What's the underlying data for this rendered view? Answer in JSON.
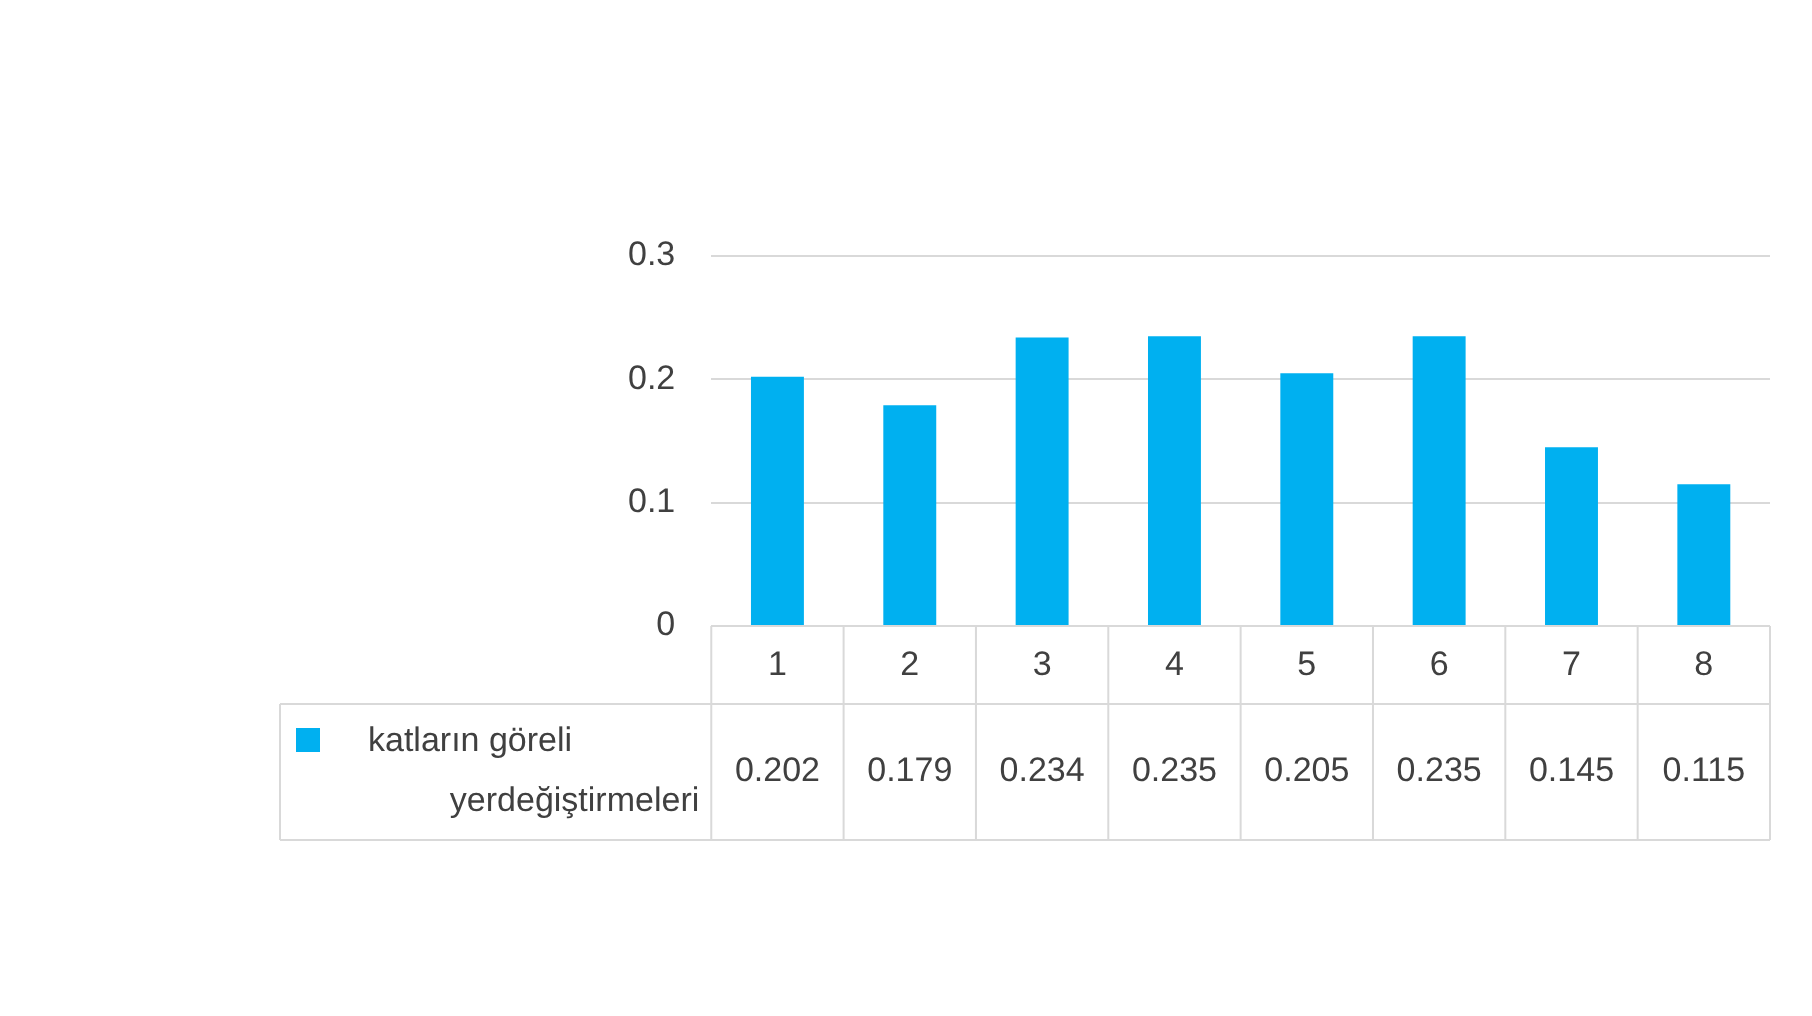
{
  "chart_data": {
    "type": "bar",
    "categories": [
      "1",
      "2",
      "3",
      "4",
      "5",
      "6",
      "7",
      "8"
    ],
    "series": [
      {
        "name": "katların göreli yerdeğiştirmeleri",
        "color": "#00b0f0",
        "values": [
          0.202,
          0.179,
          0.234,
          0.235,
          0.205,
          0.235,
          0.145,
          0.115
        ]
      }
    ],
    "ylim": [
      0,
      0.3
    ],
    "yticks": [
      0,
      0.1,
      0.2,
      0.3
    ],
    "grid": "y",
    "data_labels": true,
    "legend": "bottom left"
  }
}
